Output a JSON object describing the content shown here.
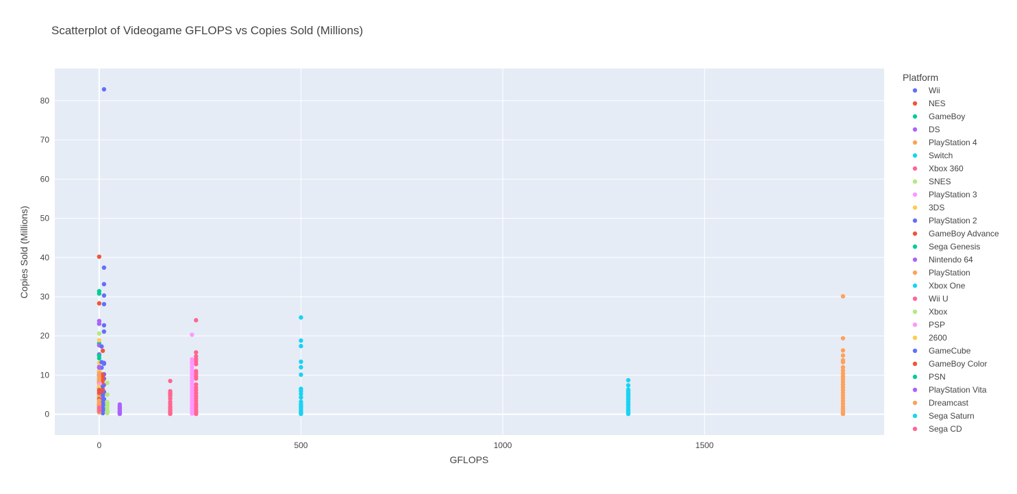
{
  "chart_data": {
    "type": "scatter",
    "title": "Scatterplot of Videogame GFLOPS vs Copies Sold (Millions)",
    "xlabel": "GFLOPS",
    "ylabel": "Copies Sold (Millions)",
    "xlim": [
      -110,
      1945
    ],
    "ylim": [
      -5.3,
      88.2
    ],
    "x_ticks": [
      0,
      500,
      1000,
      1500
    ],
    "y_ticks": [
      0,
      10,
      20,
      30,
      40,
      50,
      60,
      70,
      80
    ],
    "grid": true,
    "legend_title": "Platform",
    "legend_position": "right",
    "plot_background": "#E5ECF6",
    "series": [
      {
        "name": "Wii",
        "color": "#636EFA",
        "x": [
          12,
          12,
          12,
          12,
          12,
          12,
          12,
          12,
          12,
          12,
          12,
          12,
          12,
          12,
          12,
          12
        ],
        "y": [
          82.9,
          37.4,
          33.2,
          30.3,
          28.1,
          22.7,
          21.1,
          13.1,
          12.9,
          10.2,
          9.1,
          7.5,
          5.7,
          3.9,
          2.5,
          1.3
        ]
      },
      {
        "name": "NES",
        "color": "#EF553B",
        "x": [
          0,
          0,
          0,
          0,
          0,
          0,
          0,
          0,
          0
        ],
        "y": [
          40.2,
          28.3,
          7.0,
          6.5,
          5.2,
          4.6,
          3.9,
          3.3,
          2.6
        ]
      },
      {
        "name": "GameBoy",
        "color": "#00CC96",
        "x": [
          0,
          0,
          0,
          0,
          0,
          0,
          0,
          0
        ],
        "y": [
          31.4,
          30.8,
          23.1,
          18.1,
          15.0,
          9.0,
          5.3,
          3.8
        ]
      },
      {
        "name": "DS",
        "color": "#AB63FA",
        "x": [
          0,
          0,
          0,
          0,
          0,
          0,
          0,
          0,
          0,
          0
        ],
        "y": [
          23.8,
          23.1,
          17.6,
          15.3,
          12.1,
          11.0,
          9.9,
          8.6,
          6.5,
          5.1
        ]
      },
      {
        "name": "PlayStation 4",
        "color": "#FFA15A",
        "x": [
          1843,
          1843,
          1843,
          1843,
          1843,
          1843,
          1843,
          1843,
          1843,
          1843,
          1843,
          1843,
          1843,
          1843,
          1843,
          1843,
          1843,
          1843,
          1843,
          1843,
          1843,
          1843,
          1843,
          1843,
          1843
        ],
        "y": [
          30.1,
          19.4,
          16.3,
          15.0,
          13.8,
          13.3,
          12.0,
          11.2,
          10.4,
          9.7,
          9.0,
          8.3,
          7.6,
          6.9,
          6.2,
          5.5,
          4.8,
          4.1,
          3.4,
          2.7,
          2.0,
          1.4,
          0.9,
          0.5,
          0.1
        ]
      },
      {
        "name": "Switch",
        "color": "#19D3F3",
        "x": [
          0,
          0,
          0,
          0,
          0,
          0,
          0,
          0
        ],
        "y": [
          10.1,
          8.8,
          7.0,
          5.3,
          4.0,
          2.8,
          1.6,
          0.6
        ]
      },
      {
        "name": "Xbox 360",
        "color": "#FF6692",
        "x": [
          240,
          240,
          240,
          240,
          240,
          240,
          240,
          240,
          240,
          240,
          240,
          240,
          240,
          240,
          240,
          240,
          240,
          240,
          240,
          240,
          240,
          240,
          240,
          240
        ],
        "y": [
          24.0,
          15.8,
          14.8,
          14.1,
          13.5,
          12.8,
          11.0,
          10.4,
          9.7,
          9.1,
          7.6,
          6.8,
          6.1,
          5.4,
          4.7,
          4.1,
          3.4,
          2.7,
          2.1,
          1.6,
          1.1,
          0.7,
          0.3,
          0.1
        ]
      },
      {
        "name": "SNES",
        "color": "#B6E880",
        "x": [
          0,
          0,
          0,
          0,
          0,
          0,
          0
        ],
        "y": [
          20.6,
          10.8,
          8.7,
          6.6,
          4.9,
          3.5,
          1.9
        ]
      },
      {
        "name": "PlayStation 3",
        "color": "#FF97FF",
        "x": [
          230,
          230,
          230,
          230,
          230,
          230,
          230,
          230,
          230,
          230,
          230,
          230,
          230,
          230,
          230,
          230,
          230,
          230,
          230,
          230,
          230,
          230
        ],
        "y": [
          20.3,
          14.0,
          13.4,
          12.9,
          12.1,
          11.4,
          10.6,
          10.0,
          9.3,
          8.5,
          7.8,
          7.1,
          6.4,
          5.7,
          5.0,
          4.3,
          3.6,
          2.9,
          2.2,
          1.5,
          0.8,
          0.2
        ]
      },
      {
        "name": "3DS",
        "color": "#FECB52",
        "x": [
          0,
          0,
          0,
          0,
          0,
          0,
          0,
          0,
          0
        ],
        "y": [
          18.9,
          13.1,
          11.1,
          9.6,
          8.2,
          6.9,
          4.6,
          3.3,
          2.1
        ]
      },
      {
        "name": "PlayStation 2",
        "color": "#636EFA",
        "x": [
          6,
          6,
          6,
          6,
          6,
          6,
          6,
          6,
          6,
          6,
          6,
          6,
          6,
          6,
          6
        ],
        "y": [
          17.3,
          13.3,
          11.9,
          10.2,
          9.5,
          8.6,
          7.8,
          7.0,
          6.1,
          5.2,
          4.3,
          3.4,
          2.5,
          1.6,
          0.7
        ]
      },
      {
        "name": "GameBoy Advance",
        "color": "#EF553B",
        "x": [
          9,
          9,
          9,
          9,
          9,
          9,
          9,
          9,
          9
        ],
        "y": [
          16.2,
          10.1,
          9.4,
          8.6,
          7.5,
          6.3,
          5.0,
          3.4,
          1.5
        ]
      },
      {
        "name": "Sega Genesis",
        "color": "#00CC96",
        "x": [
          0,
          0,
          0,
          0,
          0
        ],
        "y": [
          15.0,
          14.3,
          4.1,
          2.8,
          1.4
        ]
      },
      {
        "name": "Nintendo 64",
        "color": "#AB63FA",
        "x": [
          0,
          0,
          0,
          0,
          0,
          0
        ],
        "y": [
          11.9,
          9.9,
          8.2,
          5.9,
          3.9,
          2.1
        ]
      },
      {
        "name": "PlayStation",
        "color": "#FFA15A",
        "x": [
          0,
          0,
          0,
          0,
          0,
          0,
          0,
          0,
          0,
          0
        ],
        "y": [
          10.5,
          9.7,
          9.1,
          8.5,
          7.8,
          6.9,
          5.0,
          3.8,
          2.5,
          1.1
        ]
      },
      {
        "name": "Xbox One",
        "color": "#19D3F3",
        "x": [
          500,
          500,
          500,
          500,
          500,
          500,
          500,
          500,
          500,
          500,
          500,
          500,
          500,
          500,
          500,
          500,
          500,
          500
        ],
        "y": [
          24.7,
          18.8,
          17.4,
          13.4,
          12.0,
          10.1,
          6.5,
          5.9,
          5.2,
          4.3,
          3.2,
          2.6,
          2.1,
          1.6,
          1.1,
          0.7,
          0.4,
          0.1
        ]
      },
      {
        "name": "Wii U",
        "color": "#FF6692",
        "x": [
          176,
          176,
          176,
          176,
          176,
          176,
          176,
          176,
          176,
          176,
          176,
          176,
          176,
          176,
          176
        ],
        "y": [
          8.5,
          5.9,
          5.5,
          5.1,
          4.7,
          4.0,
          3.2,
          2.6,
          2.0,
          1.6,
          1.2,
          0.9,
          0.6,
          0.3,
          0.1
        ]
      },
      {
        "name": "Xbox",
        "color": "#B6E880",
        "x": [
          20,
          20,
          20,
          20,
          20,
          20,
          20,
          20,
          20
        ],
        "y": [
          8.0,
          5.0,
          3.1,
          2.7,
          2.2,
          1.7,
          1.2,
          0.7,
          0.3
        ]
      },
      {
        "name": "PSP",
        "color": "#FF97FF",
        "x": [
          2,
          2,
          2,
          2,
          2,
          2
        ],
        "y": [
          7.7,
          4.0,
          3.5,
          2.8,
          2.0,
          1.0
        ]
      },
      {
        "name": "2600",
        "color": "#FECB52",
        "x": [
          0,
          0,
          0,
          0
        ],
        "y": [
          7.0,
          4.0,
          2.7,
          1.3
        ]
      },
      {
        "name": "GameCube",
        "color": "#636EFA",
        "x": [
          9,
          9,
          9,
          9,
          9,
          9,
          9,
          9
        ],
        "y": [
          7.1,
          4.8,
          3.8,
          3.0,
          2.3,
          1.6,
          0.9,
          0.3
        ]
      },
      {
        "name": "GameBoy Color",
        "color": "#EF553B",
        "x": [
          0,
          0,
          0,
          0,
          0
        ],
        "y": [
          6.2,
          5.5,
          3.9,
          2.3,
          0.9
        ]
      },
      {
        "name": "PSN",
        "color": "#00CC96",
        "x": [
          0,
          0,
          0
        ],
        "y": [
          1.6,
          1.1,
          0.5
        ]
      },
      {
        "name": "PlayStation Vita",
        "color": "#AB63FA",
        "x": [
          51,
          51,
          51,
          51,
          51,
          51,
          51,
          51,
          51
        ],
        "y": [
          2.5,
          2.0,
          1.7,
          1.4,
          1.1,
          0.8,
          0.5,
          0.3,
          0.1
        ]
      },
      {
        "name": "Dreamcast",
        "color": "#FFA15A",
        "x": [
          0,
          0,
          0,
          0,
          0
        ],
        "y": [
          3.5,
          2.8,
          2.1,
          1.3,
          0.5
        ]
      },
      {
        "name": "Sega Saturn",
        "color": "#19D3F3",
        "x": [
          1311,
          1311,
          1311,
          1311,
          1311,
          1311,
          1311,
          1311,
          1311,
          1311,
          1311,
          1311,
          1311,
          1311,
          1311,
          1311,
          1311
        ],
        "y": [
          8.7,
          7.4,
          6.3,
          5.9,
          5.4,
          5.0,
          4.6,
          4.1,
          3.7,
          3.2,
          2.7,
          2.3,
          1.8,
          1.3,
          0.9,
          0.5,
          0.1
        ]
      },
      {
        "name": "Sega CD",
        "color": "#FF6692",
        "x": [
          0,
          0
        ],
        "y": [
          1.7,
          0.9
        ]
      }
    ]
  }
}
